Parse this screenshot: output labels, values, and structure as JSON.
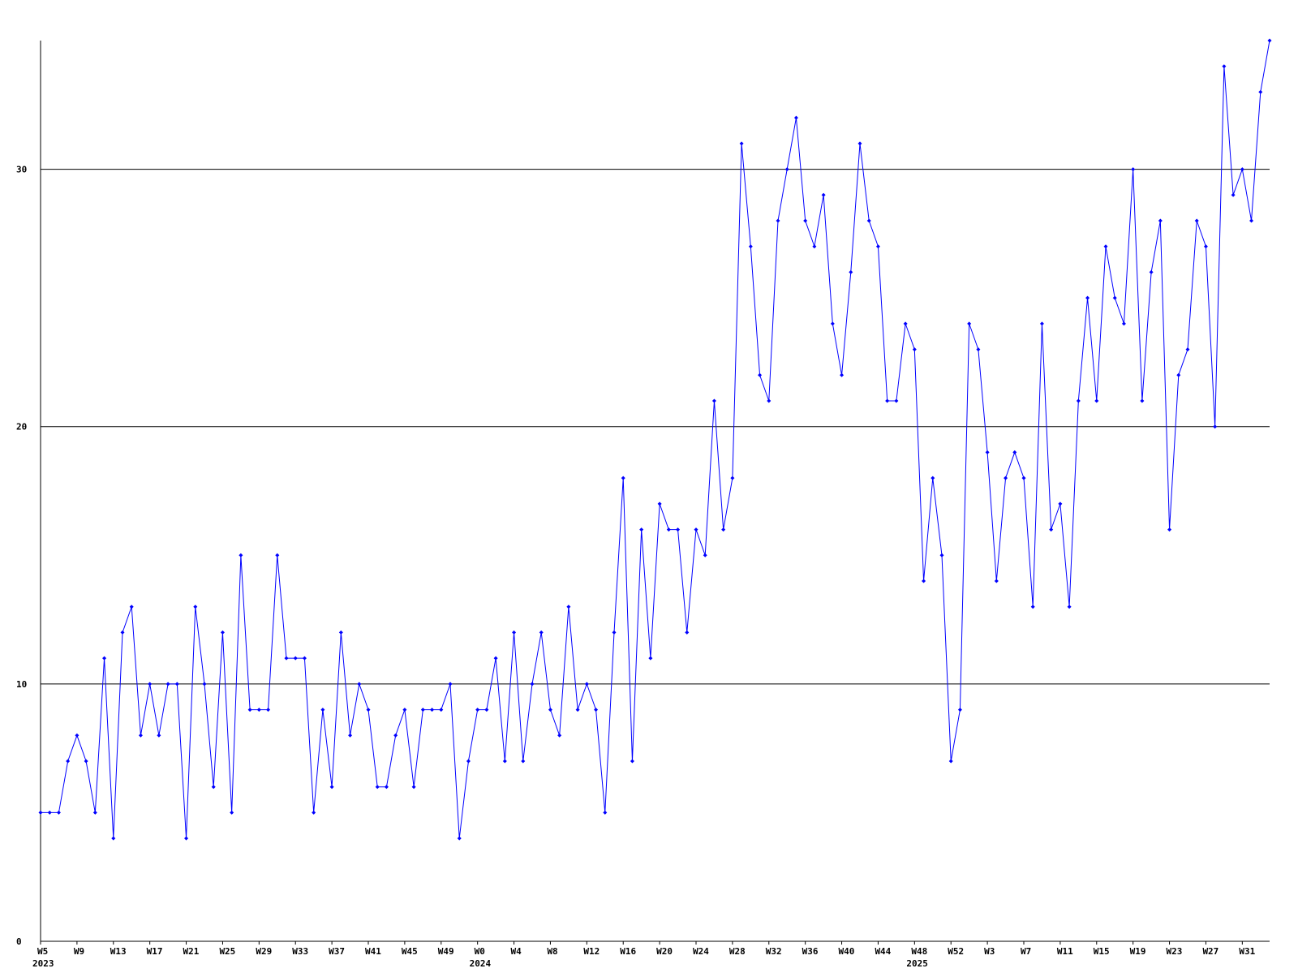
{
  "chart_data": {
    "type": "line",
    "categories": [
      "W5",
      null,
      null,
      null,
      "W9",
      null,
      null,
      null,
      "W13",
      null,
      null,
      null,
      "W17",
      null,
      null,
      null,
      "W21",
      null,
      null,
      null,
      "W25",
      null,
      null,
      null,
      "W29",
      null,
      null,
      null,
      "W33",
      null,
      null,
      null,
      "W37",
      null,
      null,
      null,
      "W41",
      null,
      null,
      null,
      "W45",
      null,
      null,
      null,
      "W49",
      null,
      null,
      null,
      "W0",
      null,
      null,
      null,
      "W4",
      null,
      null,
      null,
      "W8",
      null,
      null,
      null,
      "W12",
      null,
      null,
      null,
      "W16",
      null,
      null,
      null,
      "W20",
      null,
      null,
      null,
      "W24",
      null,
      null,
      null,
      "W28",
      null,
      null,
      null,
      "W32",
      null,
      null,
      null,
      "W36",
      null,
      null,
      null,
      "W40",
      null,
      null,
      null,
      "W44",
      null,
      null,
      null,
      "W48",
      null,
      null,
      null,
      "W52",
      null,
      null,
      null,
      "W3",
      null,
      null,
      null,
      "W7",
      null,
      null,
      null,
      "W11",
      null,
      null,
      null,
      "W15",
      null,
      null,
      null,
      "W19",
      null,
      null,
      null,
      "W23",
      null,
      null,
      null,
      "W27",
      null,
      null,
      null,
      "W31",
      null,
      null,
      null
    ],
    "years": [
      "2023",
      null,
      null,
      null,
      null,
      null,
      null,
      null,
      null,
      null,
      null,
      null,
      null,
      null,
      null,
      null,
      null,
      null,
      null,
      null,
      null,
      null,
      null,
      null,
      null,
      null,
      null,
      null,
      null,
      null,
      null,
      null,
      null,
      null,
      null,
      null,
      null,
      null,
      null,
      null,
      null,
      null,
      null,
      null,
      null,
      null,
      null,
      null,
      "2024",
      null,
      null,
      null,
      null,
      null,
      null,
      null,
      null,
      null,
      null,
      null,
      null,
      null,
      null,
      null,
      null,
      null,
      null,
      null,
      null,
      null,
      null,
      null,
      null,
      null,
      null,
      null,
      null,
      null,
      null,
      null,
      null,
      null,
      null,
      null,
      null,
      null,
      null,
      null,
      null,
      null,
      null,
      null,
      null,
      null,
      null,
      null,
      "2025",
      null,
      null,
      null,
      null,
      null,
      null,
      null,
      null,
      null,
      null,
      null,
      null,
      null,
      null,
      null,
      null,
      null,
      null,
      null,
      null,
      null,
      null,
      null,
      null,
      null,
      null,
      null,
      null,
      null,
      null,
      null,
      null,
      null,
      null,
      null
    ],
    "series": [
      {
        "color": "#0000ff",
        "values": [
          5,
          5,
          5,
          7,
          8,
          7,
          5,
          11,
          4,
          12,
          13,
          8,
          10,
          8,
          10,
          10,
          4,
          13,
          10,
          6,
          12,
          5,
          15,
          9,
          9,
          9,
          15,
          11,
          11,
          11,
          5,
          9,
          6,
          12,
          8,
          10,
          9,
          6,
          6,
          8,
          9,
          6,
          9,
          9,
          9,
          10,
          4,
          7,
          9,
          9,
          11,
          7,
          12,
          7,
          10,
          12,
          9,
          8,
          13,
          9,
          10,
          9,
          5,
          12,
          18,
          7,
          16,
          11,
          17,
          16,
          16,
          12,
          16,
          15,
          21,
          16,
          18,
          31,
          27,
          22,
          21,
          28,
          30,
          32,
          28,
          27,
          29,
          24,
          22,
          26,
          31,
          28,
          27,
          21,
          21,
          24,
          23,
          14,
          18,
          15,
          7,
          9,
          24,
          23,
          19,
          14,
          18,
          19,
          18,
          13,
          24,
          16,
          17,
          13,
          21,
          25,
          21,
          27,
          25,
          24,
          30,
          21,
          26,
          28,
          16,
          22,
          23,
          28,
          27,
          20,
          34,
          29,
          30,
          28,
          33,
          35
        ]
      }
    ],
    "ylim": [
      0,
      35
    ],
    "yticks": [
      0,
      10,
      20,
      30
    ],
    "grid": true
  }
}
